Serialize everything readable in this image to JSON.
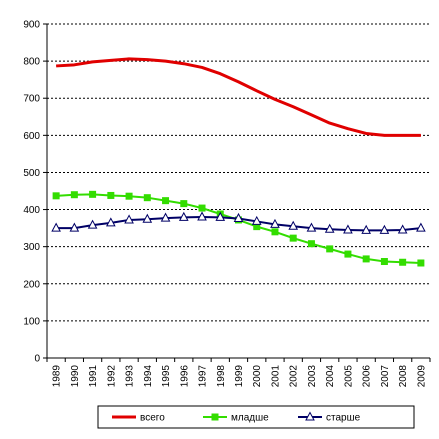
{
  "chart_data": {
    "type": "line",
    "title": "",
    "xlabel": "",
    "ylabel": "",
    "x": [
      "1989",
      "1990",
      "1991",
      "1992",
      "1993",
      "1994",
      "1995",
      "1996",
      "1997",
      "1998",
      "1999",
      "2000",
      "2001",
      "2002",
      "2003",
      "2004",
      "2005",
      "2006",
      "2007",
      "2008",
      "2009"
    ],
    "ylim": [
      0,
      900
    ],
    "yticks": [
      0,
      100,
      200,
      300,
      400,
      500,
      600,
      700,
      800,
      900
    ],
    "grid": true,
    "legend_position": "bottom",
    "series": [
      {
        "name": "всего",
        "color": "#e00000",
        "marker": "none",
        "values": [
          787,
          790,
          798,
          802,
          806,
          804,
          800,
          793,
          783,
          766,
          744,
          720,
          697,
          677,
          655,
          633,
          618,
          605,
          600,
          600,
          600
        ]
      },
      {
        "name": "младше",
        "color": "#33dd00",
        "marker": "square",
        "values": [
          437,
          440,
          441,
          438,
          436,
          432,
          424,
          416,
          404,
          388,
          372,
          354,
          340,
          323,
          308,
          294,
          280,
          267,
          260,
          258,
          256
        ]
      },
      {
        "name": "старше",
        "color": "#000066",
        "marker": "triangle",
        "values": [
          350,
          350,
          358,
          364,
          372,
          374,
          377,
          379,
          380,
          379,
          376,
          368,
          360,
          355,
          350,
          347,
          345,
          344,
          344,
          345,
          350
        ]
      }
    ]
  }
}
